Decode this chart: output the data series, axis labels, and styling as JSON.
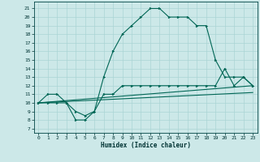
{
  "xlabel": "Humidex (Indice chaleur)",
  "bg_color": "#cce8e8",
  "grid_color": "#aad4d4",
  "line_color": "#006655",
  "xlim": [
    -0.5,
    23.5
  ],
  "ylim": [
    6.5,
    21.8
  ],
  "xticks": [
    0,
    1,
    2,
    3,
    4,
    5,
    6,
    7,
    8,
    9,
    10,
    11,
    12,
    13,
    14,
    15,
    16,
    17,
    18,
    19,
    20,
    21,
    22,
    23
  ],
  "yticks": [
    7,
    8,
    9,
    10,
    11,
    12,
    13,
    14,
    15,
    16,
    17,
    18,
    19,
    20,
    21
  ],
  "curve1_x": [
    0,
    1,
    2,
    3,
    4,
    5,
    6,
    7,
    8,
    9,
    10,
    11,
    12,
    13,
    14,
    15,
    16,
    17,
    18,
    19,
    20,
    21,
    22,
    23
  ],
  "curve1_y": [
    10,
    11,
    11,
    10,
    8,
    8,
    9,
    13,
    16,
    18,
    19,
    20,
    21,
    21,
    20,
    20,
    20,
    19,
    19,
    15,
    13,
    13,
    13,
    12
  ],
  "curve2_x": [
    0,
    1,
    2,
    3,
    4,
    5,
    6,
    7,
    8,
    9,
    10,
    11,
    12,
    13,
    14,
    15,
    16,
    17,
    18,
    19,
    20,
    21,
    22,
    23
  ],
  "curve2_y": [
    10,
    10,
    10,
    10,
    9,
    8.5,
    9,
    11,
    11,
    12,
    12,
    12,
    12,
    12,
    12,
    12,
    12,
    12,
    12,
    12,
    14,
    12,
    13,
    12
  ],
  "line3_x": [
    0,
    23
  ],
  "line3_y": [
    10,
    12.0
  ],
  "line4_x": [
    0,
    23
  ],
  "line4_y": [
    10,
    11.2
  ]
}
